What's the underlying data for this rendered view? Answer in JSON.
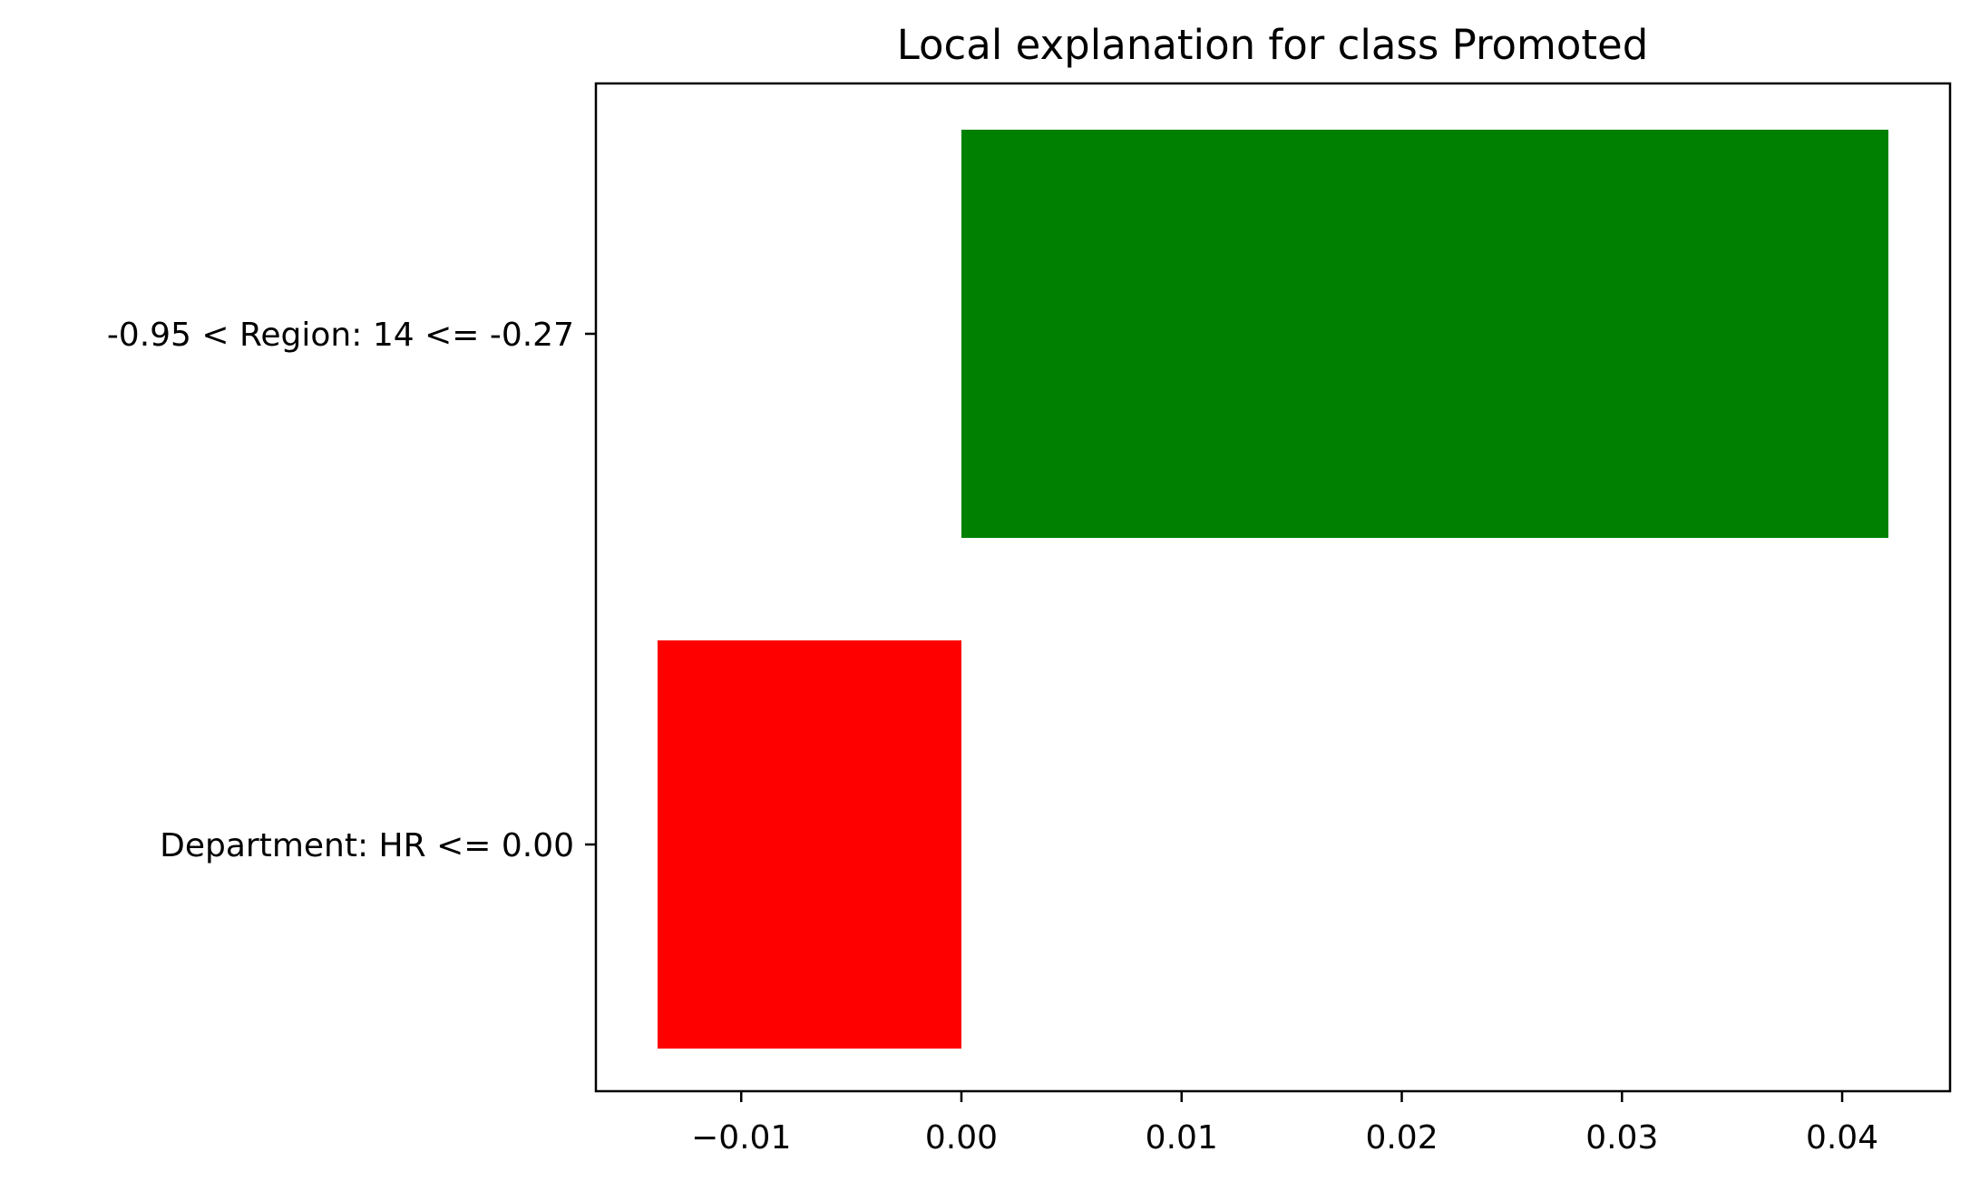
{
  "chart_data": {
    "type": "bar",
    "orientation": "horizontal",
    "title": "Local explanation for class Promoted",
    "xlabel": "",
    "ylabel": "",
    "categories": [
      "-0.95 < Region: 14 <= -0.27",
      "Department: HR <= 0.00"
    ],
    "values": [
      0.0421,
      -0.0138
    ],
    "bar_colors": [
      "#008000",
      "#ff0000"
    ],
    "xlim": [
      -0.0166,
      0.0449
    ],
    "xticks": [
      -0.01,
      0.0,
      0.01,
      0.02,
      0.03,
      0.04
    ],
    "xtick_labels": [
      "−0.01",
      "0.00",
      "0.01",
      "0.02",
      "0.03",
      "0.04"
    ],
    "grid": false,
    "legend": false
  }
}
